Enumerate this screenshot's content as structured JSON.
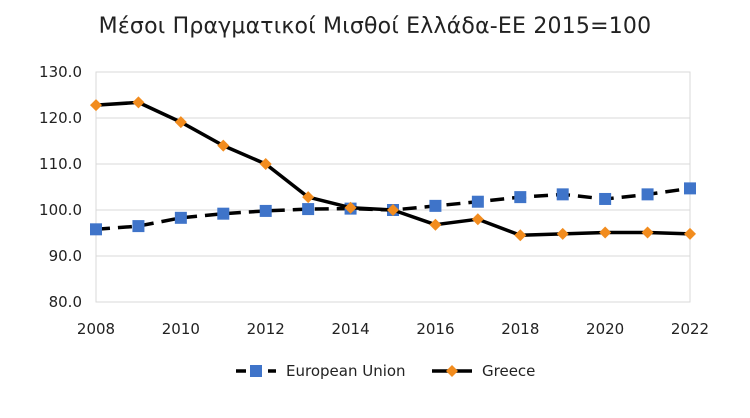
{
  "chart_data": {
    "type": "line",
    "title": "Μέσοι Πραγματικοί Μισθοί Ελλάδα-ΕΕ 2015=100",
    "xlabel": "",
    "ylabel": "",
    "x": [
      2008,
      2009,
      2010,
      2011,
      2012,
      2013,
      2014,
      2015,
      2016,
      2017,
      2018,
      2019,
      2020,
      2021,
      2022
    ],
    "x_ticks": [
      "2008",
      "2010",
      "2012",
      "2014",
      "2016",
      "2018",
      "2020",
      "2022"
    ],
    "xlim": [
      2008,
      2022
    ],
    "ylim": [
      80,
      130
    ],
    "y_ticks": [
      "80.0",
      "90.0",
      "100.0",
      "110.0",
      "120.0",
      "130.0"
    ],
    "grid": "horizontal",
    "legend_position": "bottom",
    "series": [
      {
        "name": "European Union",
        "color": "#3f74c9",
        "line_color": "#000000",
        "line_style": "dashed",
        "marker": "square",
        "values": [
          95.8,
          96.5,
          98.3,
          99.2,
          99.8,
          100.2,
          100.3,
          100.0,
          100.9,
          101.8,
          102.8,
          103.4,
          102.4,
          103.4,
          104.7
        ]
      },
      {
        "name": "Greece",
        "color": "#f28c1e",
        "line_color": "#000000",
        "line_style": "solid",
        "marker": "diamond",
        "values": [
          122.8,
          123.4,
          119.1,
          114.0,
          110.0,
          102.8,
          100.5,
          100.0,
          96.8,
          98.0,
          94.5,
          94.8,
          95.1,
          95.1,
          94.8
        ]
      }
    ]
  }
}
